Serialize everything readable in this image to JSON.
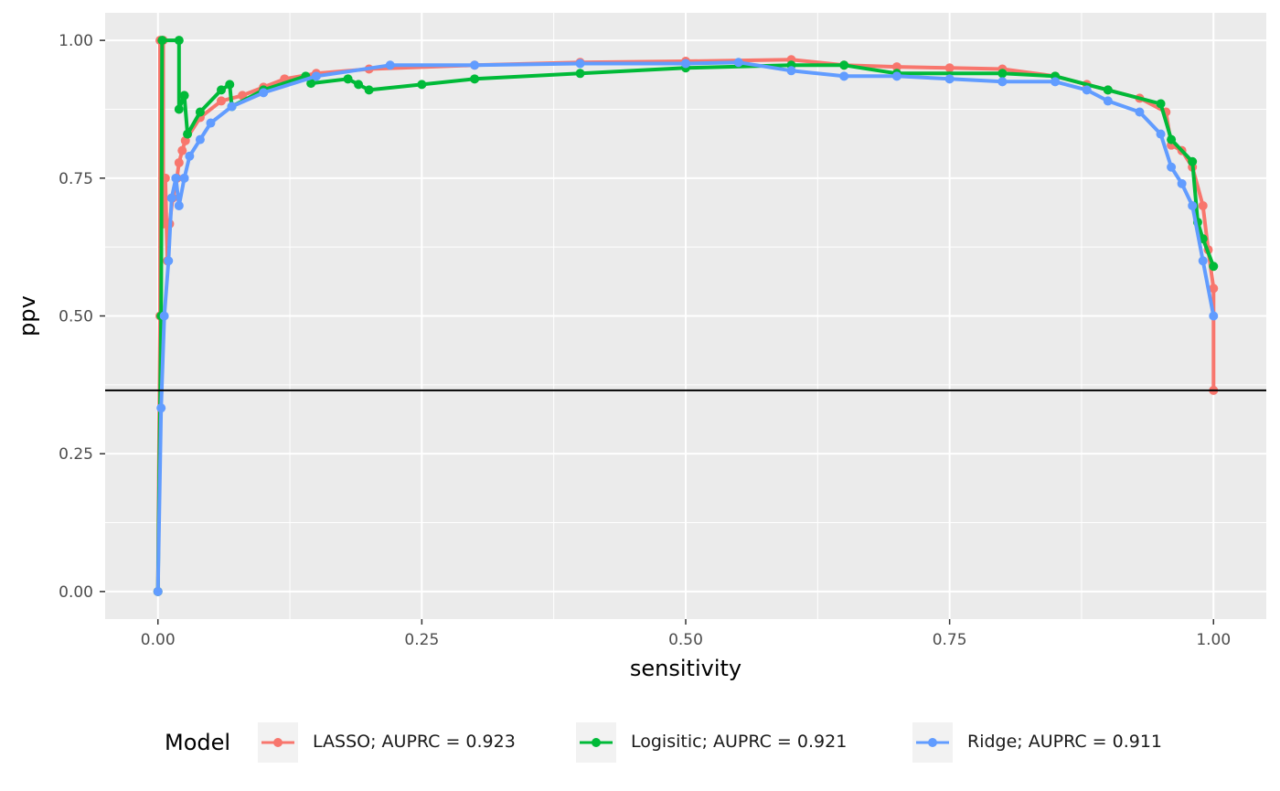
{
  "chart_data": {
    "type": "line",
    "xlabel": "sensitivity",
    "ylabel": "ppv",
    "xlim": [
      -0.05,
      1.05
    ],
    "ylim": [
      -0.05,
      1.05
    ],
    "x_ticks": [
      0,
      0.25,
      0.5,
      0.75,
      1
    ],
    "x_tick_labels": [
      "0.00",
      "0.25",
      "0.50",
      "0.75",
      "1.00"
    ],
    "y_ticks": [
      0,
      0.25,
      0.5,
      0.75,
      1
    ],
    "y_tick_labels": [
      "0.00",
      "0.25",
      "0.50",
      "0.75",
      "1.00"
    ],
    "grid": true,
    "legend_position": "bottom",
    "legend_title": "Model",
    "reference_line": 0.365,
    "series": [
      {
        "name": "LASSO; AUPRC = 0.923",
        "color": "#F8766D",
        "points": [
          [
            0,
            0
          ],
          [
            0.002,
            0.5
          ],
          [
            0.002,
            1.0
          ],
          [
            0.005,
            1.0
          ],
          [
            0.005,
            0.667
          ],
          [
            0.007,
            0.75
          ],
          [
            0.009,
            0.6
          ],
          [
            0.011,
            0.667
          ],
          [
            0.014,
            0.714
          ],
          [
            0.018,
            0.75
          ],
          [
            0.02,
            0.778
          ],
          [
            0.023,
            0.8
          ],
          [
            0.026,
            0.818
          ],
          [
            0.04,
            0.86
          ],
          [
            0.06,
            0.89
          ],
          [
            0.08,
            0.9
          ],
          [
            0.1,
            0.915
          ],
          [
            0.12,
            0.93
          ],
          [
            0.15,
            0.94
          ],
          [
            0.2,
            0.948
          ],
          [
            0.3,
            0.955
          ],
          [
            0.4,
            0.96
          ],
          [
            0.5,
            0.962
          ],
          [
            0.6,
            0.965
          ],
          [
            0.65,
            0.955
          ],
          [
            0.7,
            0.952
          ],
          [
            0.75,
            0.95
          ],
          [
            0.8,
            0.948
          ],
          [
            0.85,
            0.935
          ],
          [
            0.88,
            0.92
          ],
          [
            0.9,
            0.91
          ],
          [
            0.93,
            0.895
          ],
          [
            0.955,
            0.87
          ],
          [
            0.96,
            0.81
          ],
          [
            0.97,
            0.8
          ],
          [
            0.98,
            0.77
          ],
          [
            0.99,
            0.7
          ],
          [
            0.995,
            0.62
          ],
          [
            1.0,
            0.55
          ],
          [
            1.0,
            0.365
          ]
        ]
      },
      {
        "name": "Logisitic; AUPRC = 0.921",
        "color": "#00BA38",
        "points": [
          [
            0,
            0
          ],
          [
            0.003,
            0.5
          ],
          [
            0.004,
            1.0
          ],
          [
            0.02,
            1.0
          ],
          [
            0.02,
            0.875
          ],
          [
            0.025,
            0.9
          ],
          [
            0.028,
            0.83
          ],
          [
            0.04,
            0.87
          ],
          [
            0.06,
            0.91
          ],
          [
            0.068,
            0.92
          ],
          [
            0.07,
            0.88
          ],
          [
            0.1,
            0.91
          ],
          [
            0.14,
            0.935
          ],
          [
            0.145,
            0.922
          ],
          [
            0.18,
            0.93
          ],
          [
            0.19,
            0.92
          ],
          [
            0.2,
            0.91
          ],
          [
            0.25,
            0.92
          ],
          [
            0.3,
            0.93
          ],
          [
            0.4,
            0.94
          ],
          [
            0.5,
            0.95
          ],
          [
            0.6,
            0.955
          ],
          [
            0.65,
            0.955
          ],
          [
            0.7,
            0.94
          ],
          [
            0.8,
            0.94
          ],
          [
            0.85,
            0.935
          ],
          [
            0.9,
            0.91
          ],
          [
            0.95,
            0.885
          ],
          [
            0.96,
            0.82
          ],
          [
            0.98,
            0.78
          ],
          [
            0.985,
            0.67
          ],
          [
            0.99,
            0.64
          ],
          [
            1.0,
            0.59
          ]
        ]
      },
      {
        "name": "Ridge; AUPRC = 0.911",
        "color": "#619CFF",
        "points": [
          [
            0,
            0
          ],
          [
            0.003,
            0.333
          ],
          [
            0.006,
            0.5
          ],
          [
            0.01,
            0.6
          ],
          [
            0.013,
            0.714
          ],
          [
            0.017,
            0.75
          ],
          [
            0.02,
            0.7
          ],
          [
            0.025,
            0.75
          ],
          [
            0.03,
            0.79
          ],
          [
            0.04,
            0.82
          ],
          [
            0.05,
            0.85
          ],
          [
            0.07,
            0.88
          ],
          [
            0.1,
            0.905
          ],
          [
            0.15,
            0.935
          ],
          [
            0.22,
            0.955
          ],
          [
            0.3,
            0.955
          ],
          [
            0.4,
            0.958
          ],
          [
            0.5,
            0.958
          ],
          [
            0.55,
            0.96
          ],
          [
            0.6,
            0.945
          ],
          [
            0.65,
            0.935
          ],
          [
            0.7,
            0.935
          ],
          [
            0.75,
            0.93
          ],
          [
            0.8,
            0.925
          ],
          [
            0.85,
            0.925
          ],
          [
            0.88,
            0.91
          ],
          [
            0.9,
            0.89
          ],
          [
            0.93,
            0.87
          ],
          [
            0.95,
            0.83
          ],
          [
            0.96,
            0.77
          ],
          [
            0.97,
            0.74
          ],
          [
            0.98,
            0.7
          ],
          [
            0.99,
            0.6
          ],
          [
            1.0,
            0.5
          ]
        ]
      }
    ]
  }
}
